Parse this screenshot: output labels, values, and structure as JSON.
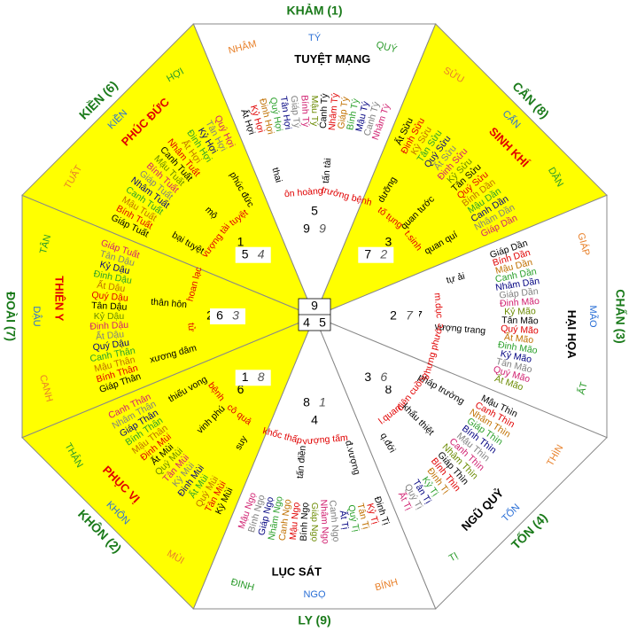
{
  "center": {
    "top": 9,
    "left": 4,
    "right": 5
  },
  "sectors": [
    {
      "name": "KHẢM (1)",
      "fill": "#ffffff",
      "mountains": [
        "NHÂM",
        "TÝ",
        "QUÝ"
      ],
      "star": "TUYỆT MẠNG",
      "star_color": "#000000",
      "number": 5,
      "pair": [
        9,
        9
      ],
      "notes": [
        "thai",
        "ôn hoàng",
        "tấn tài",
        "trưởng bệnh"
      ],
      "cycle": [
        "Ất Hợi",
        "Kỷ Hợi",
        "Đinh Hợi",
        "Quý Hợi",
        "Tân Hợi",
        "Giáp Tý",
        "Bính Tý",
        "Mậu Tý",
        "Canh Tý",
        "Nhâm Tý",
        "Giáp Tý",
        "Bính Tý",
        "Mậu Tý",
        "Canh Tý",
        "Nhâm Tý"
      ]
    },
    {
      "name": "CẤN (8)",
      "fill": "#ffff00",
      "mountains": [
        "SỬU",
        "CẤN",
        "DẦN"
      ],
      "star": "SINH KHÍ",
      "star_color": "#e00000",
      "number": 3,
      "pair": [
        7,
        2
      ],
      "notes": [
        "dưỡng",
        "tố tụng",
        "quan tước",
        "t.sinh",
        "quan quí"
      ],
      "cycle": [
        "Ất Sửu",
        "Đinh Sửu",
        "Kỷ Sửu",
        "Tân Sửu",
        "Quý Sửu",
        "Ất Sửu",
        "Đinh Sửu",
        "Kỷ Sửu",
        "Tân Sửu",
        "Quý Sửu",
        "Bính Dần",
        "Mậu Dần",
        "Canh Dần",
        "Nhâm Dần",
        "Giáp Dần"
      ]
    },
    {
      "name": "CHẤN (3)",
      "fill": "#ffffff",
      "mountains": [
        "GIÁP",
        "MÃO",
        "ẤT"
      ],
      "star": "HẠI HỌA",
      "star_color": "#000000",
      "number": 7,
      "pair": [
        2,
        7
      ],
      "notes": [
        "tự ải",
        "m.dục",
        "vượng trang",
        "hưng phước"
      ],
      "cycle": [
        "Giáp Dần",
        "Bính Dần",
        "Mậu Dần",
        "Canh Dần",
        "Nhâm Dần",
        "Giáp Dần",
        "Đinh Mão",
        "Kỷ Mão",
        "Tân Mão",
        "Quý Mão",
        "Ất Mão",
        "Đinh Mão",
        "Kỷ Mão",
        "Tân Mão",
        "Quý Mão",
        "Ất Mão"
      ]
    },
    {
      "name": "TỐN (4)",
      "fill": "#ffffff",
      "mountains": [
        "THÌN",
        "TỐN",
        "TỊ"
      ],
      "star": "NGŨ QUỶ",
      "star_color": "#000000",
      "number": 8,
      "pair": [
        3,
        6
      ],
      "notes": [
        "pháp trường",
        "điên cuồng",
        "khẩu thiệt",
        "l.quan",
        "q.đới"
      ],
      "cycle": [
        "Mậu Thìn",
        "Canh Thìn",
        "Nhâm Thìn",
        "Giáp Thìn",
        "Bính Thìn",
        "Mậu Thìn",
        "Canh Thìn",
        "Nhâm Thìn",
        "Giáp Thìn",
        "Bính Thìn",
        "Đinh Tị",
        "Kỷ Tị",
        "Tân Tị",
        "Quý Tị",
        "Ất Tị"
      ]
    },
    {
      "name": "LY (9)",
      "fill": "#ffffff",
      "mountains": [
        "BÍNH",
        "NGỌ",
        "ĐINH"
      ],
      "star": "LỤC SÁT",
      "star_color": "#000000",
      "number": 4,
      "pair": [
        8,
        1
      ],
      "notes": [
        "đ.vượng",
        "vượng tấm",
        "tấn điền",
        "khốc thấp"
      ],
      "cycle": [
        "Đinh Tị",
        "Kỷ Tị",
        "Tân Tị",
        "Quý Tị",
        "Ất Tị",
        "Canh Ngọ",
        "Nhâm Ngọ",
        "Giáp Ngọ",
        "Bính Ngọ",
        "Mậu Ngọ",
        "Canh Ngọ",
        "Nhâm Ngọ",
        "Giáp Ngọ",
        "Bính Ngọ",
        "Mậu Ngọ"
      ]
    },
    {
      "name": "KHÔN (2)",
      "fill": "#ffff00",
      "mountains": [
        "MÙI",
        "KHÔN",
        "THÂN"
      ],
      "star": "PHỤC VỊ",
      "star_color": "#e00000",
      "number": 6,
      "pair": [
        1,
        8
      ],
      "notes": [
        "suy",
        "cô quả",
        "vinh phú",
        "bệnh",
        "thiếu vong"
      ],
      "cycle": [
        "Kỷ Mùi",
        "Tân Mùi",
        "Quý Mùi",
        "Ất Mùi",
        "Đinh Mùi",
        "Kỷ Mùi",
        "Tân Mùi",
        "Quý Mùi",
        "Ất Mùi",
        "Đinh Mùi",
        "Mậu Thân",
        "Bính Thân",
        "Giáp Thân",
        "Nhâm Thân",
        "Canh Thân"
      ]
    },
    {
      "name": "ĐOÀI (7)",
      "fill": "#ffff00",
      "mountains": [
        "CANH",
        "DẬU",
        "TÂN"
      ],
      "star": "THIÊN Y",
      "star_color": "#e00000",
      "number": 2,
      "pair": [
        6,
        3
      ],
      "notes": [
        "xương dâm",
        "tử",
        "thân hôn",
        "hoan lạc"
      ],
      "cycle": [
        "Giáp Thân",
        "Bính Thân",
        "Mậu Thân",
        "Canh Thân",
        "Quý Dậu",
        "Ất Dậu",
        "Đinh Dậu",
        "Kỷ Dậu",
        "Tân Dậu",
        "Quý Dậu",
        "Ất Dậu",
        "Đinh Dậu",
        "Kỷ Dậu",
        "Tân Dậu",
        "Giáp Tuất"
      ]
    },
    {
      "name": "KIỀN (6)",
      "fill": "#ffff00",
      "mountains": [
        "TUẤT",
        "KIỀN",
        "HỢI"
      ],
      "star": "PHÚC ĐỨC",
      "star_color": "#e00000",
      "number": 1,
      "pair": [
        5,
        4
      ],
      "notes": [
        "bại tuyệt",
        "vượng tài",
        "mộ",
        "tuyệt",
        "phúc đức"
      ],
      "cycle": [
        "Giáp Tuất",
        "Bính Tuất",
        "Mậu Tuất",
        "Canh Tuất",
        "Nhâm Tuất",
        "Giáp Tuất",
        "Bính Tuất",
        "Mậu Tuất",
        "Canh Tuất",
        "Nhâm Tuất",
        "Ất Hợi",
        "Đinh Hợi",
        "Kỷ Hợi",
        "Tân Hợi",
        "Quý Hợi"
      ]
    }
  ]
}
